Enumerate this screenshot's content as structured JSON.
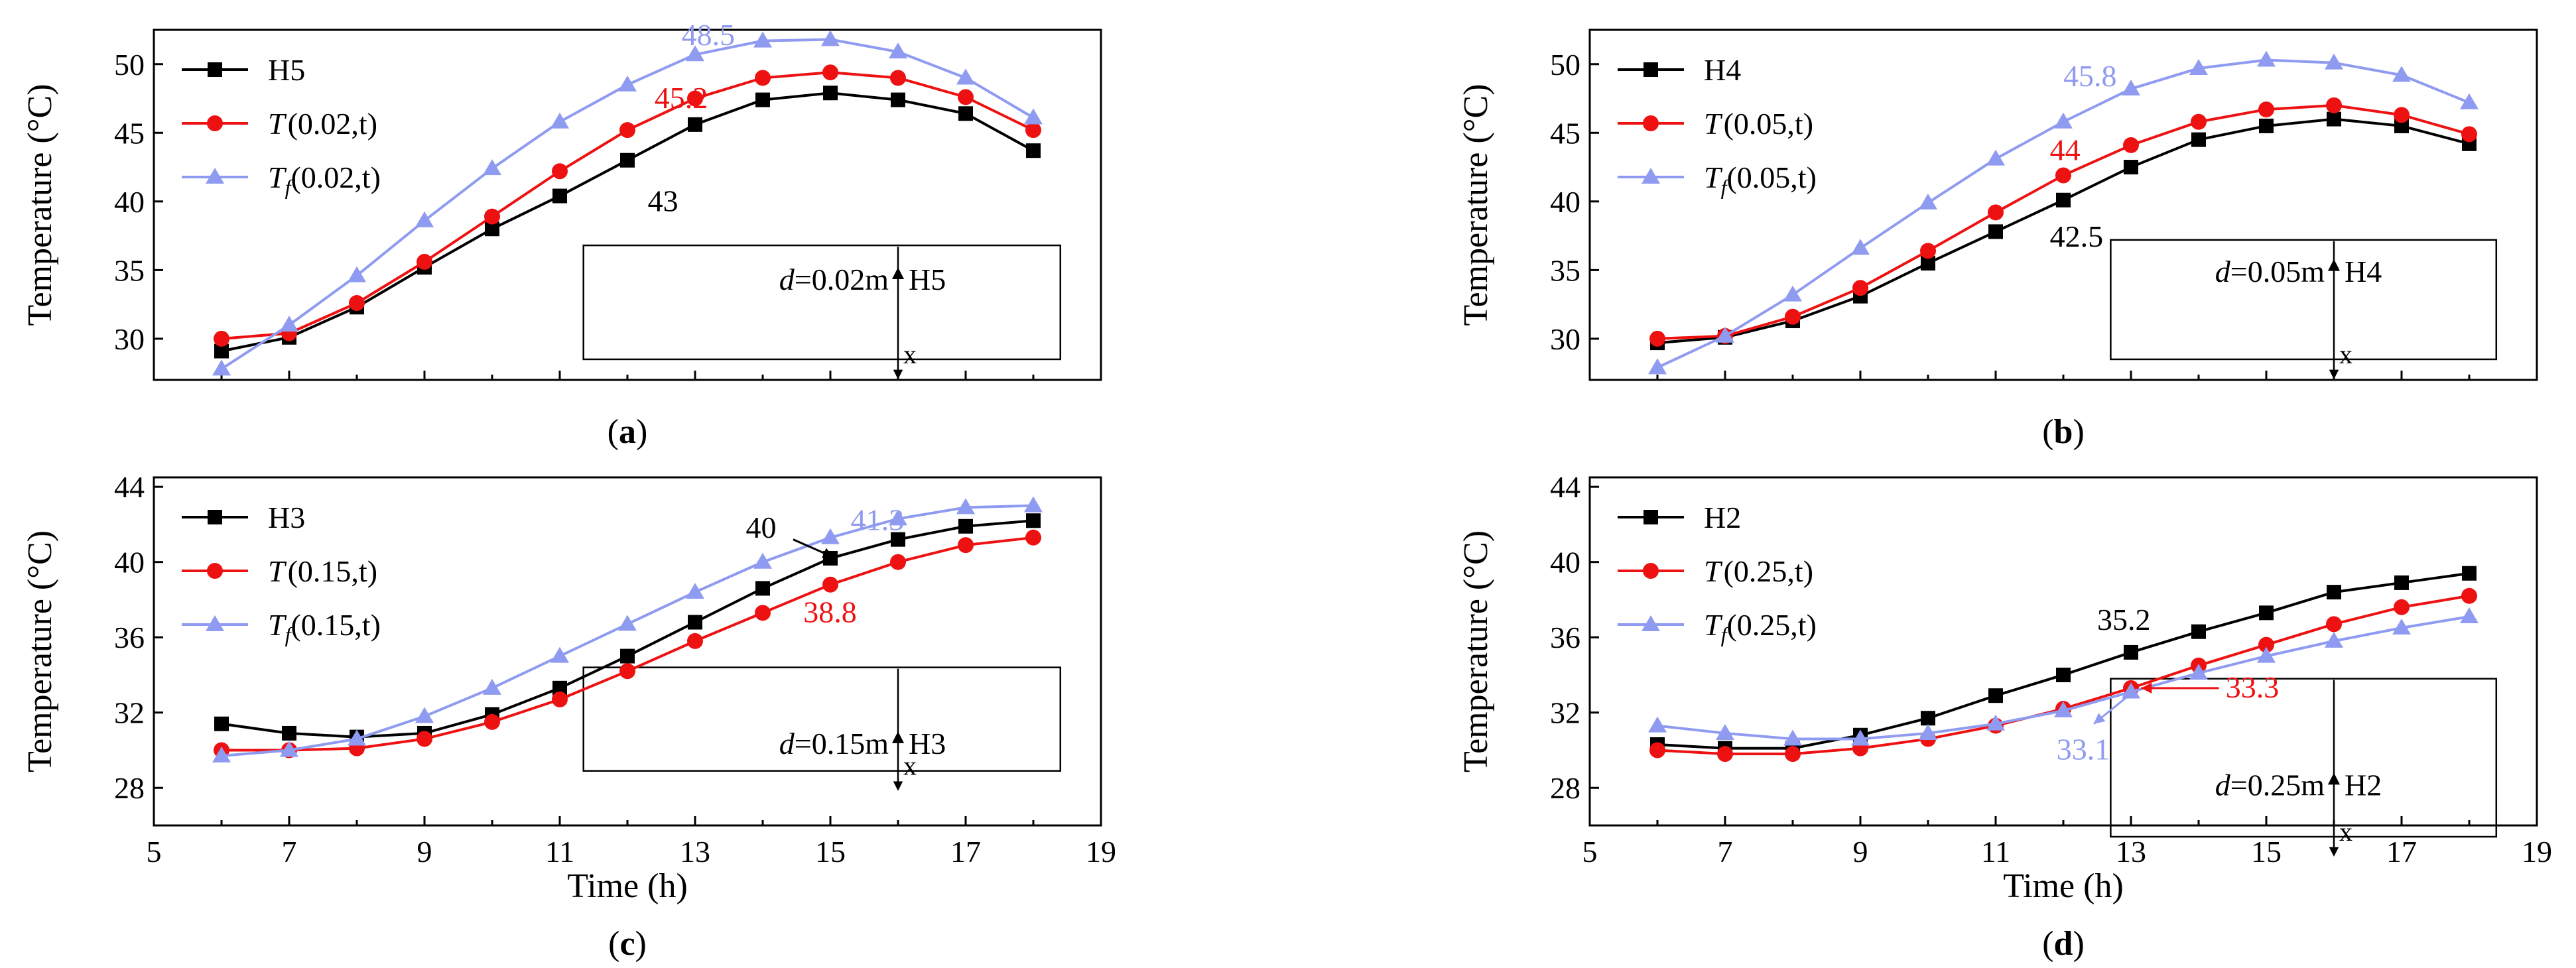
{
  "colors": {
    "H": "#000000",
    "T": "#ee1111",
    "Tf": "#8f9bf0",
    "axis": "#000000"
  },
  "chart_data": [
    {
      "id": "a",
      "type": "line",
      "panel_label": "a",
      "xlabel": "",
      "ylabel": "Temperature (°C)",
      "xlim": [
        5,
        19
      ],
      "ylim": [
        27,
        52.5
      ],
      "yticks": [
        30,
        35,
        40,
        45,
        50
      ],
      "show_xticklabels": false,
      "x": [
        6,
        7,
        8,
        9,
        10,
        11,
        12,
        13,
        14,
        15,
        16,
        17,
        18
      ],
      "series": [
        {
          "key": "H",
          "name": "H5",
          "name_main": "H5",
          "name_sub": "",
          "name_args": "",
          "values": [
            29.1,
            30.1,
            32.3,
            35.2,
            38.0,
            40.4,
            43.0,
            45.6,
            47.4,
            47.9,
            47.4,
            46.4,
            43.7
          ]
        },
        {
          "key": "T",
          "name": "T(0.02,t)",
          "name_main": "T",
          "name_sub": "",
          "name_args": "(0.02,t)",
          "values": [
            30.0,
            30.4,
            32.6,
            35.6,
            38.9,
            42.2,
            45.2,
            47.5,
            49.0,
            49.4,
            49.0,
            47.6,
            45.2
          ]
        },
        {
          "key": "Tf",
          "name": "Tf(0.02,t)",
          "name_main": "T",
          "name_sub": "f",
          "name_args": "(0.02,t)",
          "values": [
            27.8,
            31.0,
            34.6,
            38.6,
            42.4,
            45.8,
            48.5,
            50.7,
            51.7,
            51.8,
            50.9,
            49.0,
            46.1
          ]
        }
      ],
      "annotations": [
        {
          "text": "48.5",
          "color": "Tf",
          "x": 12.8,
          "y": 51.4
        },
        {
          "text": "45.2",
          "color": "T",
          "x": 12.4,
          "y": 46.8
        },
        {
          "text": "43",
          "color": "H",
          "x": 12.3,
          "y": 39.3
        }
      ],
      "inset": {
        "label": "d=0.02m",
        "label_var": "d",
        "label_val": "=0.02m",
        "sensor": "H5",
        "axis": "x",
        "box_x": [
          11.35,
          18.4
        ],
        "box_y": [
          28.5,
          36.8
        ],
        "arrow_x": 16,
        "arrow_mark_y": 35.2
      }
    },
    {
      "id": "b",
      "type": "line",
      "panel_label": "b",
      "xlabel": "",
      "ylabel": "Temperature (°C)",
      "xlim": [
        5,
        19
      ],
      "ylim": [
        27,
        52.5
      ],
      "yticks": [
        30,
        35,
        40,
        45,
        50
      ],
      "show_xticklabels": false,
      "x": [
        6,
        7,
        8,
        9,
        10,
        11,
        12,
        13,
        14,
        15,
        16,
        17,
        18
      ],
      "series": [
        {
          "key": "H",
          "name": "H4",
          "name_main": "H4",
          "name_sub": "",
          "name_args": "",
          "values": [
            29.7,
            30.1,
            31.3,
            33.1,
            35.5,
            37.8,
            40.1,
            42.5,
            44.5,
            45.5,
            46.0,
            45.5,
            44.2
          ]
        },
        {
          "key": "T",
          "name": "T(0.05,t)",
          "name_main": "T",
          "name_sub": "",
          "name_args": "(0.05,t)",
          "values": [
            30.0,
            30.2,
            31.6,
            33.7,
            36.4,
            39.2,
            41.9,
            44.1,
            45.8,
            46.7,
            47.0,
            46.3,
            44.9
          ]
        },
        {
          "key": "Tf",
          "name": "Tf(0.05,t)",
          "name_main": "T",
          "name_sub": "f",
          "name_args": "(0.05,t)",
          "values": [
            27.9,
            30.2,
            33.2,
            36.6,
            39.9,
            43.1,
            45.8,
            48.2,
            49.7,
            50.3,
            50.1,
            49.2,
            47.2
          ]
        }
      ],
      "annotations": [
        {
          "text": "45.8",
          "color": "Tf",
          "x": 12.0,
          "y": 48.4
        },
        {
          "text": "44",
          "color": "T",
          "x": 11.8,
          "y": 43.0
        },
        {
          "text": "42.5",
          "color": "H",
          "x": 11.8,
          "y": 36.7
        }
      ],
      "inset": {
        "label": "d=0.05m",
        "label_var": "d",
        "label_val": "=0.05m",
        "sensor": "H4",
        "axis": "x",
        "box_x": [
          12.7,
          18.4
        ],
        "box_y": [
          28.5,
          37.2
        ],
        "arrow_x": 16,
        "arrow_mark_y": 35.8
      }
    },
    {
      "id": "c",
      "type": "line",
      "panel_label": "c",
      "xlabel": "Time (h)",
      "ylabel": "Temperature (°C)",
      "xlim": [
        5,
        19
      ],
      "ylim": [
        26,
        44.5
      ],
      "yticks": [
        28,
        32,
        36,
        40,
        44
      ],
      "xticks": [
        5,
        7,
        9,
        11,
        13,
        15,
        17,
        19
      ],
      "show_xticklabels": true,
      "x": [
        6,
        7,
        8,
        9,
        10,
        11,
        12,
        13,
        14,
        15,
        16,
        17,
        18
      ],
      "series": [
        {
          "key": "H",
          "name": "H3",
          "name_main": "H3",
          "name_sub": "",
          "name_args": "",
          "values": [
            31.4,
            30.9,
            30.7,
            30.9,
            31.9,
            33.3,
            35.0,
            36.8,
            38.6,
            40.2,
            41.2,
            41.9,
            42.2
          ]
        },
        {
          "key": "T",
          "name": "T(0.15,t)",
          "name_main": "T",
          "name_sub": "",
          "name_args": "(0.15,t)",
          "values": [
            30.0,
            30.0,
            30.1,
            30.6,
            31.5,
            32.7,
            34.2,
            35.8,
            37.3,
            38.8,
            40.0,
            40.9,
            41.3
          ]
        },
        {
          "key": "Tf",
          "name": "Tf(0.15,t)",
          "name_main": "T",
          "name_sub": "f",
          "name_args": "(0.15,t)",
          "values": [
            29.7,
            30.0,
            30.6,
            31.8,
            33.3,
            35.0,
            36.7,
            38.4,
            40.0,
            41.3,
            42.3,
            42.9,
            43.0
          ]
        }
      ],
      "annotations": [
        {
          "text": "41.3",
          "color": "Tf",
          "x": 15.3,
          "y": 41.7
        },
        {
          "text": "38.8",
          "color": "T",
          "x": 14.6,
          "y": 36.8
        },
        {
          "text": "40",
          "color": "H",
          "x": 13.75,
          "y": 41.3
        }
      ],
      "pointers": [
        {
          "color": "H",
          "from": [
            14.45,
            41.2
          ],
          "to": [
            15.05,
            40.25
          ]
        }
      ],
      "inset": {
        "label": "d=0.15m",
        "label_var": "d",
        "label_val": "=0.15m",
        "sensor": "H3",
        "axis": "x",
        "box_x": [
          11.35,
          18.4
        ],
        "box_y": [
          28.9,
          34.4
        ],
        "arrow_x": 16,
        "arrow_mark_y": 31.0
      }
    },
    {
      "id": "d",
      "type": "line",
      "panel_label": "d",
      "xlabel": "Time (h)",
      "ylabel": "Temperature (°C)",
      "xlim": [
        5,
        19
      ],
      "ylim": [
        26,
        44.5
      ],
      "yticks": [
        28,
        32,
        36,
        40,
        44
      ],
      "xticks": [
        5,
        7,
        9,
        11,
        13,
        15,
        17,
        19
      ],
      "show_xticklabels": true,
      "x": [
        6,
        7,
        8,
        9,
        10,
        11,
        12,
        13,
        14,
        15,
        16,
        17,
        18
      ],
      "series": [
        {
          "key": "H",
          "name": "H2",
          "name_main": "H2",
          "name_sub": "",
          "name_args": "",
          "values": [
            30.3,
            30.1,
            30.1,
            30.8,
            31.7,
            32.9,
            34.0,
            35.2,
            36.3,
            37.3,
            38.4,
            38.9,
            39.4
          ]
        },
        {
          "key": "T",
          "name": "T(0.25,t)",
          "name_main": "T",
          "name_sub": "",
          "name_args": "(0.25,t)",
          "values": [
            30.0,
            29.8,
            29.8,
            30.1,
            30.6,
            31.3,
            32.2,
            33.3,
            34.5,
            35.6,
            36.7,
            37.6,
            38.2
          ]
        },
        {
          "key": "Tf",
          "name": "Tf(0.25,t)",
          "name_main": "T",
          "name_sub": "f",
          "name_args": "(0.25,t)",
          "values": [
            31.3,
            30.9,
            30.6,
            30.6,
            30.9,
            31.4,
            32.1,
            33.1,
            34.1,
            35.0,
            35.8,
            36.5,
            37.1
          ]
        }
      ],
      "annotations": [
        {
          "text": "35.2",
          "color": "H",
          "x": 12.5,
          "y": 36.4
        },
        {
          "text": "33.3",
          "color": "T",
          "x": 14.4,
          "y": 32.8
        },
        {
          "text": "33.1",
          "color": "Tf",
          "x": 11.9,
          "y": 29.5
        }
      ],
      "pointers": [
        {
          "color": "T",
          "from": [
            14.3,
            33.3
          ],
          "to": [
            13.15,
            33.3
          ]
        },
        {
          "color": "Tf",
          "from": [
            13.0,
            33.0
          ],
          "to": [
            12.45,
            31.4
          ]
        }
      ],
      "inset": {
        "label": "d=0.25m",
        "label_var": "d",
        "label_val": "=0.25m",
        "sensor": "H2",
        "axis": "x",
        "box_x": [
          12.7,
          18.4
        ],
        "box_y": [
          25.4,
          33.8
        ],
        "arrow_x": 16,
        "arrow_mark_y": 28.8
      }
    }
  ]
}
